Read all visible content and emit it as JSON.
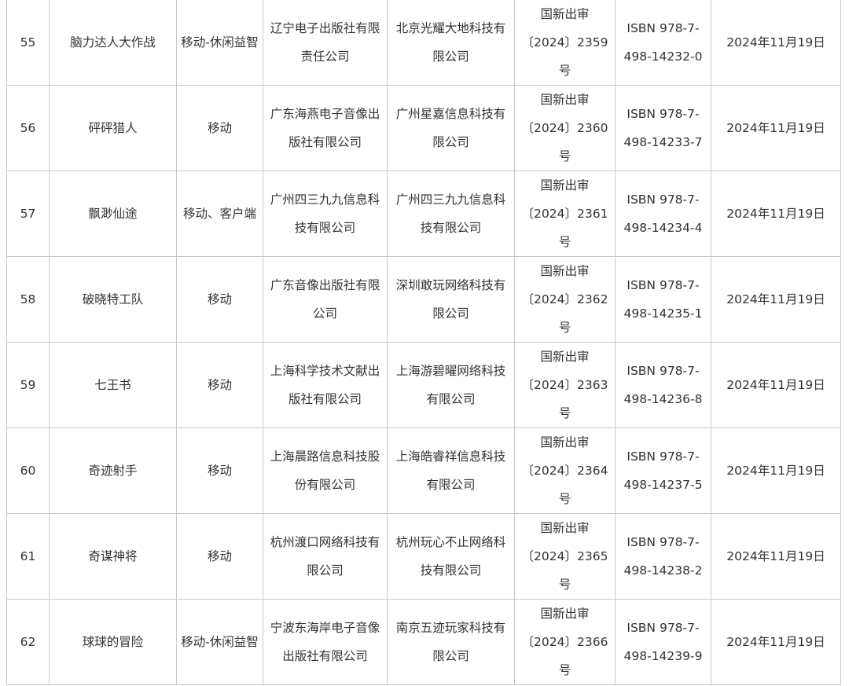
{
  "rows": [
    {
      "no": "55",
      "name": "脑力达人大作战",
      "type": "移动-休闲益智",
      "publisher": [
        "辽宁电子出版社有限",
        "责任公司"
      ],
      "operator": [
        "北京光耀大地科技有",
        "限公司"
      ],
      "approval": [
        "国新出审",
        "〔2024〕2359",
        "号"
      ],
      "isbn": [
        "ISBN 978-7-",
        "498-14232-0"
      ],
      "date": "2024年11月19日"
    },
    {
      "no": "56",
      "name": "砰砰猎人",
      "type": "移动",
      "publisher": [
        "广东海燕电子音像出",
        "版社有限公司"
      ],
      "operator": [
        "广州星嘉信息科技有",
        "限公司"
      ],
      "approval": [
        "国新出审",
        "〔2024〕2360",
        "号"
      ],
      "isbn": [
        "ISBN 978-7-",
        "498-14233-7"
      ],
      "date": "2024年11月19日"
    },
    {
      "no": "57",
      "name": "飘渺仙途",
      "type": "移动、客户端",
      "publisher": [
        "广州四三九九信息科",
        "技有限公司"
      ],
      "operator": [
        "广州四三九九信息科",
        "技有限公司"
      ],
      "approval": [
        "国新出审",
        "〔2024〕2361",
        "号"
      ],
      "isbn": [
        "ISBN 978-7-",
        "498-14234-4"
      ],
      "date": "2024年11月19日"
    },
    {
      "no": "58",
      "name": "破晓特工队",
      "type": "移动",
      "publisher": [
        "广东音像出版社有限",
        "公司"
      ],
      "operator": [
        "深圳敢玩网络科技有",
        "限公司"
      ],
      "approval": [
        "国新出审",
        "〔2024〕2362",
        "号"
      ],
      "isbn": [
        "ISBN 978-7-",
        "498-14235-1"
      ],
      "date": "2024年11月19日"
    },
    {
      "no": "59",
      "name": "七王书",
      "type": "移动",
      "publisher": [
        "上海科学技术文献出",
        "版社有限公司"
      ],
      "operator": [
        "上海游碧曜网络科技",
        "有限公司"
      ],
      "approval": [
        "国新出审",
        "〔2024〕2363",
        "号"
      ],
      "isbn": [
        "ISBN 978-7-",
        "498-14236-8"
      ],
      "date": "2024年11月19日"
    },
    {
      "no": "60",
      "name": "奇迹射手",
      "type": "移动",
      "publisher": [
        "上海晨路信息科技股",
        "份有限公司"
      ],
      "operator": [
        "上海皓睿祥信息科技",
        "有限公司"
      ],
      "approval": [
        "国新出审",
        "〔2024〕2364",
        "号"
      ],
      "isbn": [
        "ISBN 978-7-",
        "498-14237-5"
      ],
      "date": "2024年11月19日"
    },
    {
      "no": "61",
      "name": "奇谋神将",
      "type": "移动",
      "publisher": [
        "杭州渡口网络科技有",
        "限公司"
      ],
      "operator": [
        "杭州玩心不止网络科",
        "技有限公司"
      ],
      "approval": [
        "国新出审",
        "〔2024〕2365",
        "号"
      ],
      "isbn": [
        "ISBN 978-7-",
        "498-14238-2"
      ],
      "date": "2024年11月19日"
    },
    {
      "no": "62",
      "name": "球球的冒险",
      "type": "移动-休闲益智",
      "publisher": [
        "宁波东海岸电子音像",
        "出版社有限公司"
      ],
      "operator": [
        "南京五迹玩家科技有",
        "限公司"
      ],
      "approval": [
        "国新出审",
        "〔2024〕2366",
        "号"
      ],
      "isbn": [
        "ISBN 978-7-",
        "498-14239-9"
      ],
      "date": "2024年11月19日"
    }
  ]
}
